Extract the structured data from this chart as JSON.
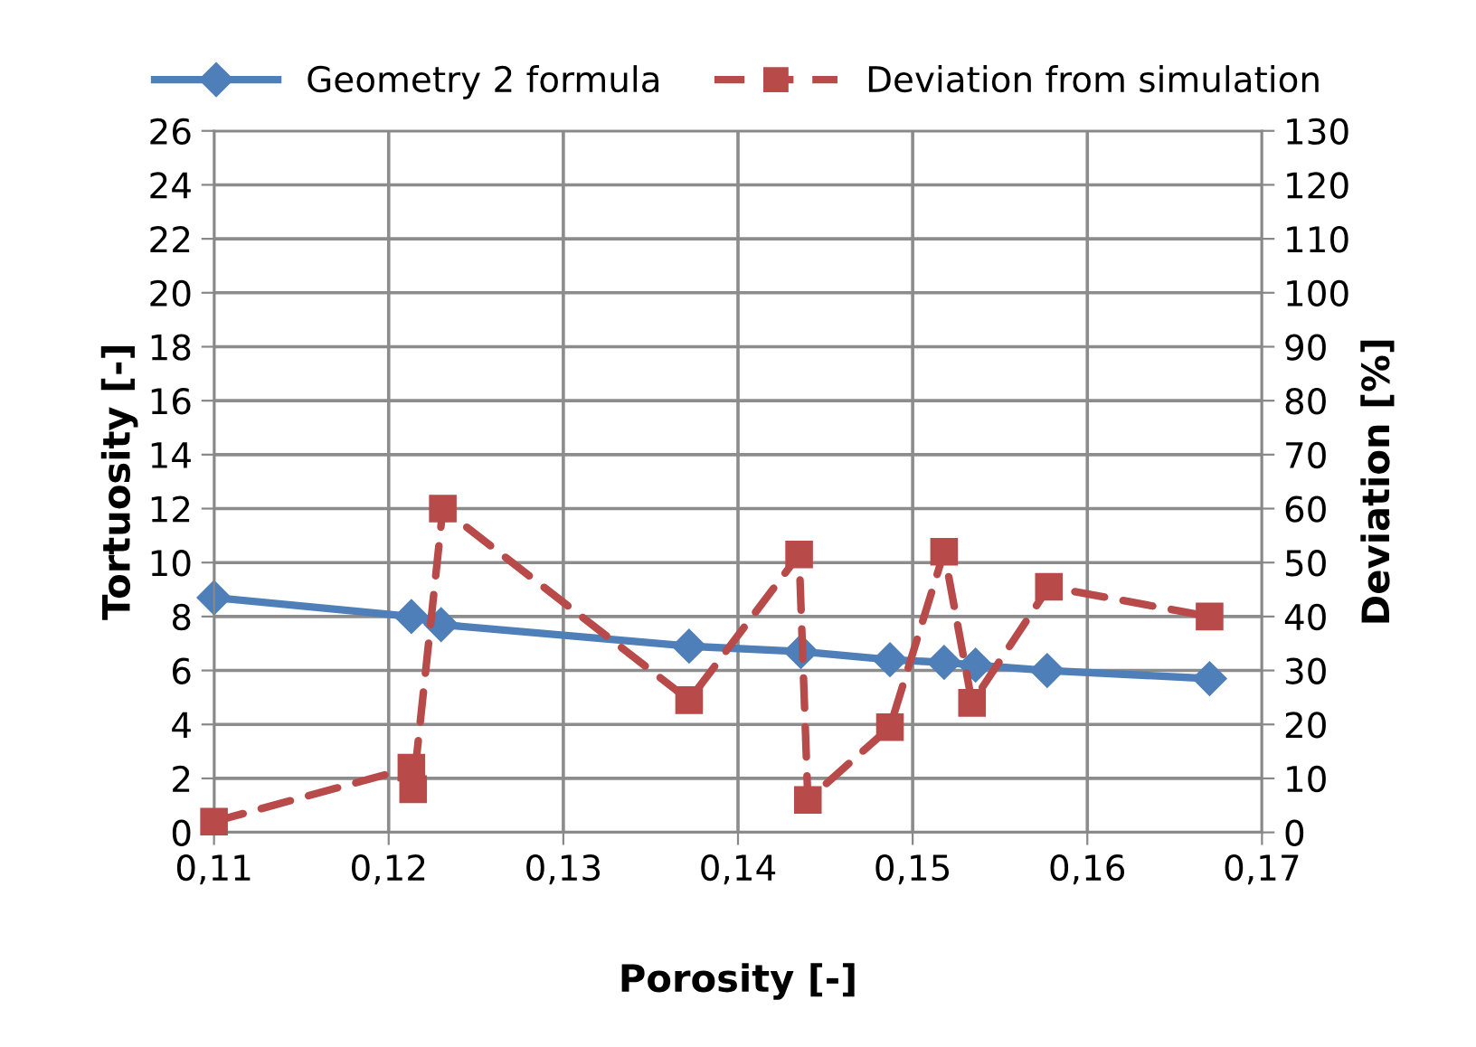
{
  "chart_data": {
    "type": "line",
    "xlabel": "Porosity [-]",
    "ylabel": "Tortuosity [-]",
    "y2label": "Deviation [%]",
    "xlim": [
      0.11,
      0.17
    ],
    "xticks": [
      {
        "value": 0.11,
        "label": "0,11"
      },
      {
        "value": 0.12,
        "label": "0,12"
      },
      {
        "value": 0.13,
        "label": "0,13"
      },
      {
        "value": 0.14,
        "label": "0,14"
      },
      {
        "value": 0.15,
        "label": "0,15"
      },
      {
        "value": 0.16,
        "label": "0,16"
      },
      {
        "value": 0.17,
        "label": "0,17"
      }
    ],
    "ylim": [
      0,
      26
    ],
    "yticks": [
      0,
      2,
      4,
      6,
      8,
      10,
      12,
      14,
      16,
      18,
      20,
      22,
      24,
      26
    ],
    "y2lim": [
      0,
      130
    ],
    "y2ticks": [
      0,
      10,
      20,
      30,
      40,
      50,
      60,
      70,
      80,
      90,
      100,
      110,
      120,
      130
    ],
    "grid": true,
    "legend": "top",
    "series": [
      {
        "name": "Geometry 2 formula",
        "color": "#4f7fb8",
        "marker": "diamond",
        "line_style": "solid",
        "x": [
          0.11,
          0.1213,
          0.123,
          0.1372,
          0.1436,
          0.1487,
          0.1518,
          0.1536,
          0.1577,
          0.167
        ],
        "values": [
          8.7,
          8.0,
          7.7,
          6.9,
          6.7,
          6.4,
          6.3,
          6.2,
          6.0,
          5.7
        ]
      },
      {
        "name": "Deviation from simulation",
        "color": "#b84a4a",
        "marker": "square",
        "line_style": "dashed",
        "axis": "y2",
        "x": [
          0.11,
          0.1213,
          0.1214,
          0.1231,
          0.1372,
          0.1435,
          0.144,
          0.1487,
          0.1518,
          0.1534,
          0.1578,
          0.167
        ],
        "values": [
          2,
          12,
          8,
          60,
          24.5,
          51.5,
          6,
          19.5,
          52,
          24,
          45.5,
          40
        ]
      }
    ]
  }
}
